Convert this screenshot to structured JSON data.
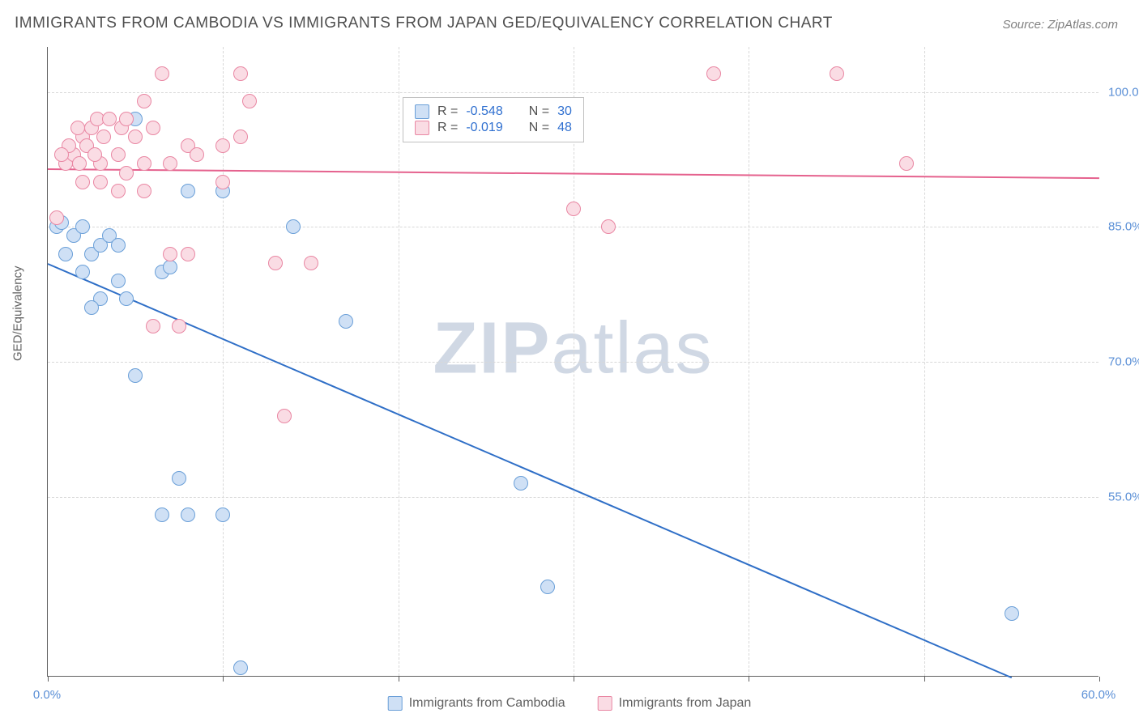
{
  "title": "IMMIGRANTS FROM CAMBODIA VS IMMIGRANTS FROM JAPAN GED/EQUIVALENCY CORRELATION CHART",
  "source": "Source: ZipAtlas.com",
  "ylabel": "GED/Equivalency",
  "watermark_bold": "ZIP",
  "watermark_light": "atlas",
  "chart": {
    "type": "scatter",
    "xlim": [
      0,
      60
    ],
    "ylim": [
      35,
      105
    ],
    "xtick_values": [
      0,
      10,
      20,
      30,
      40,
      50,
      60
    ],
    "xtick_labels": [
      "0.0%",
      "",
      "",
      "",
      "",
      "",
      "60.0%"
    ],
    "ytick_values": [
      55,
      70,
      85,
      100
    ],
    "ytick_labels": [
      "55.0%",
      "70.0%",
      "85.0%",
      "100.0%"
    ],
    "grid_color": "#d8d8d8",
    "point_radius": 9,
    "point_stroke_width": 1,
    "series": [
      {
        "name": "Immigrants from Cambodia",
        "fill": "#cfe0f5",
        "stroke": "#6a9fd8",
        "line_color": "#2f6fc7",
        "R": "-0.548",
        "N": "30",
        "trend": {
          "x1": 0,
          "y1": 81,
          "x2": 55,
          "y2": 35
        },
        "points": [
          [
            0.5,
            85
          ],
          [
            0.8,
            85.5
          ],
          [
            1.5,
            84
          ],
          [
            2.0,
            85
          ],
          [
            1.0,
            82
          ],
          [
            2.5,
            82
          ],
          [
            3.0,
            83
          ],
          [
            2.0,
            80
          ],
          [
            3.5,
            84
          ],
          [
            4.0,
            83
          ],
          [
            5.0,
            97
          ],
          [
            3.0,
            77
          ],
          [
            4.5,
            77
          ],
          [
            2.5,
            76
          ],
          [
            4.0,
            79
          ],
          [
            6.5,
            80
          ],
          [
            7.0,
            80.5
          ],
          [
            8.0,
            89
          ],
          [
            10.0,
            89
          ],
          [
            14.0,
            85
          ],
          [
            17.0,
            74.5
          ],
          [
            5.0,
            68.5
          ],
          [
            6.5,
            53
          ],
          [
            7.5,
            57
          ],
          [
            10.0,
            53
          ],
          [
            8.0,
            53
          ],
          [
            11.0,
            36
          ],
          [
            27.0,
            56.5
          ],
          [
            28.5,
            45
          ],
          [
            55.0,
            42
          ]
        ]
      },
      {
        "name": "Immigrants from Japan",
        "fill": "#fadce4",
        "stroke": "#e987a3",
        "line_color": "#e5628e",
        "R": "-0.019",
        "N": "48",
        "trend": {
          "x1": 0,
          "y1": 91.5,
          "x2": 60,
          "y2": 90.5
        },
        "points": [
          [
            0.5,
            86
          ],
          [
            1.0,
            92
          ],
          [
            1.5,
            93
          ],
          [
            1.8,
            92
          ],
          [
            2.0,
            95
          ],
          [
            2.2,
            94
          ],
          [
            2.5,
            96
          ],
          [
            2.8,
            97
          ],
          [
            3.0,
            92
          ],
          [
            3.2,
            95
          ],
          [
            3.5,
            97
          ],
          [
            4.0,
            93
          ],
          [
            4.2,
            96
          ],
          [
            4.5,
            97
          ],
          [
            5.0,
            95
          ],
          [
            5.5,
            99
          ],
          [
            5.5,
            92
          ],
          [
            6.0,
            96
          ],
          [
            6.5,
            102
          ],
          [
            7.0,
            92
          ],
          [
            8.0,
            94
          ],
          [
            8.5,
            93
          ],
          [
            10.0,
            94
          ],
          [
            11.0,
            102
          ],
          [
            11.5,
            99
          ],
          [
            10.0,
            90
          ],
          [
            7.0,
            82
          ],
          [
            8.0,
            82
          ],
          [
            13.0,
            81
          ],
          [
            15.0,
            81
          ],
          [
            11.0,
            95
          ],
          [
            30.0,
            87
          ],
          [
            32.0,
            85
          ],
          [
            38.0,
            102
          ],
          [
            45.0,
            102
          ],
          [
            49.0,
            92
          ],
          [
            7.5,
            74
          ],
          [
            6.0,
            74
          ],
          [
            13.5,
            64
          ],
          [
            4.0,
            89
          ],
          [
            5.5,
            89
          ],
          [
            3.0,
            90
          ],
          [
            2.0,
            90
          ],
          [
            4.5,
            91
          ],
          [
            1.2,
            94
          ],
          [
            2.7,
            93
          ],
          [
            1.7,
            96
          ],
          [
            0.8,
            93
          ]
        ]
      }
    ]
  },
  "stats_box": {
    "r_label": "R =",
    "n_label": "N ="
  },
  "legend": {
    "series1_label": "Immigrants from Cambodia",
    "series2_label": "Immigrants from Japan"
  }
}
